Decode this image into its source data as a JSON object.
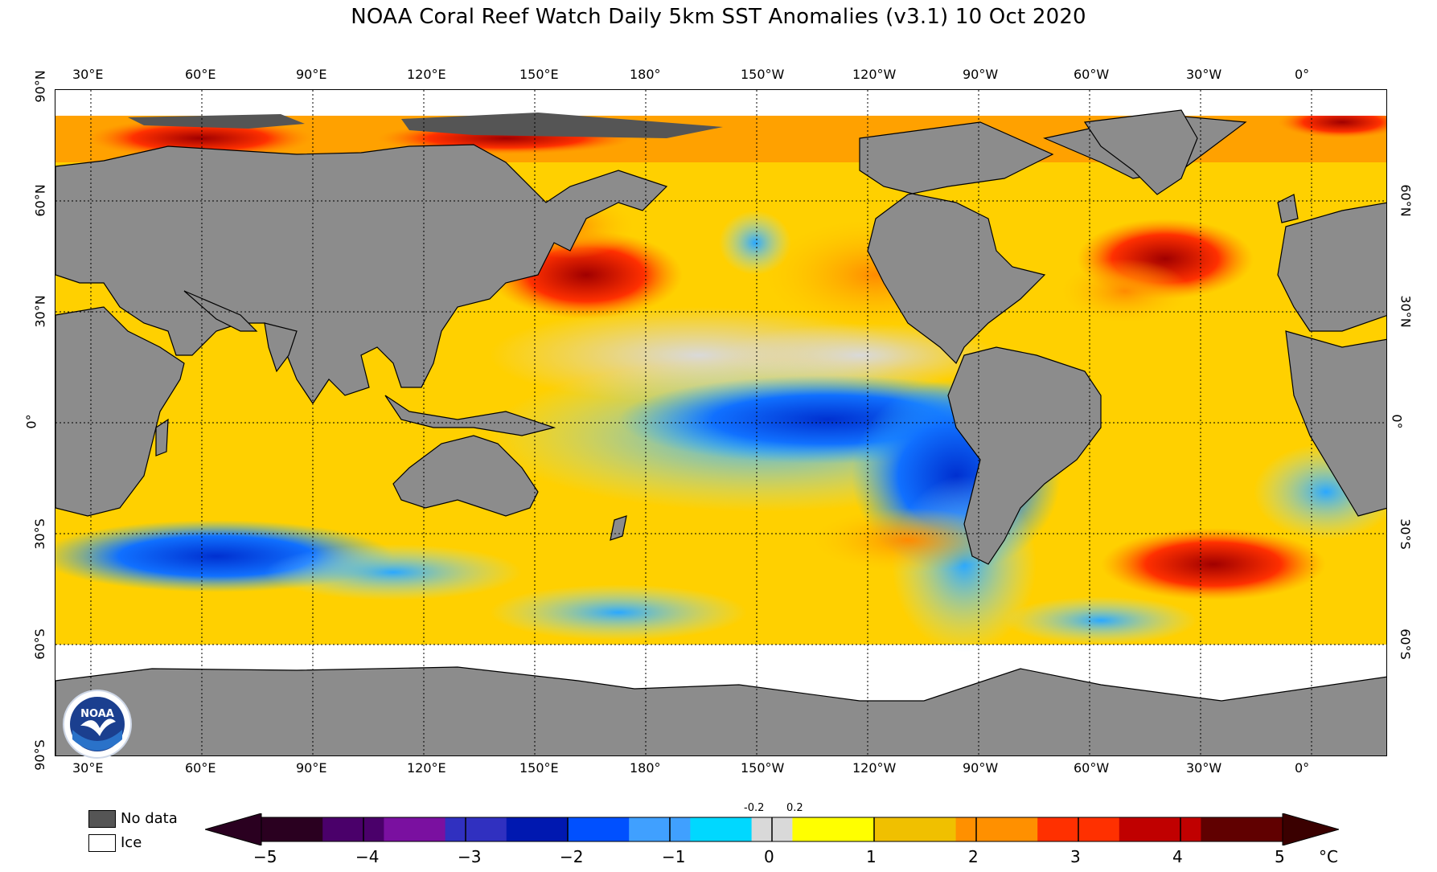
{
  "title": "NOAA Coral Reef Watch Daily 5km SST Anomalies  (v3.1)   10 Oct 2020",
  "lon_labels": [
    "30°E",
    "60°E",
    "90°E",
    "120°E",
    "150°E",
    "180°",
    "150°W",
    "120°W",
    "90°W",
    "60°W",
    "30°W",
    "0°"
  ],
  "lat_labels_left": [
    "90°N",
    "60°N",
    "30°N",
    "0°",
    "30°S",
    "60°S",
    "90°S"
  ],
  "lat_labels_right": [
    "60°N",
    "30°N",
    "0°",
    "30°S",
    "60°S"
  ],
  "legend": {
    "no_data": "No data",
    "ice": "Ice",
    "no_data_color": "#555555",
    "ice_color": "#ffffff"
  },
  "colorbar": {
    "ticks": [
      "−5",
      "−4",
      "−3",
      "−2",
      "−1",
      "0",
      "1",
      "2",
      "3",
      "4",
      "5"
    ],
    "small_ticks": [
      "-0.2",
      "0.2"
    ],
    "unit": "°C",
    "neutral_color": "#d9d9d9",
    "negative_colors": [
      "#2a0020",
      "#4a006a",
      "#7a10a0",
      "#3030c0",
      "#0018b0",
      "#0050ff",
      "#40a0ff",
      "#00d8ff"
    ],
    "positive_colors": [
      "#ffff00",
      "#f0c000",
      "#ff9000",
      "#ff3000",
      "#c00000",
      "#600000"
    ]
  },
  "colors": {
    "land": "#8c8c8c",
    "arctic_land": "#555555"
  },
  "logo_text": "NOAA"
}
